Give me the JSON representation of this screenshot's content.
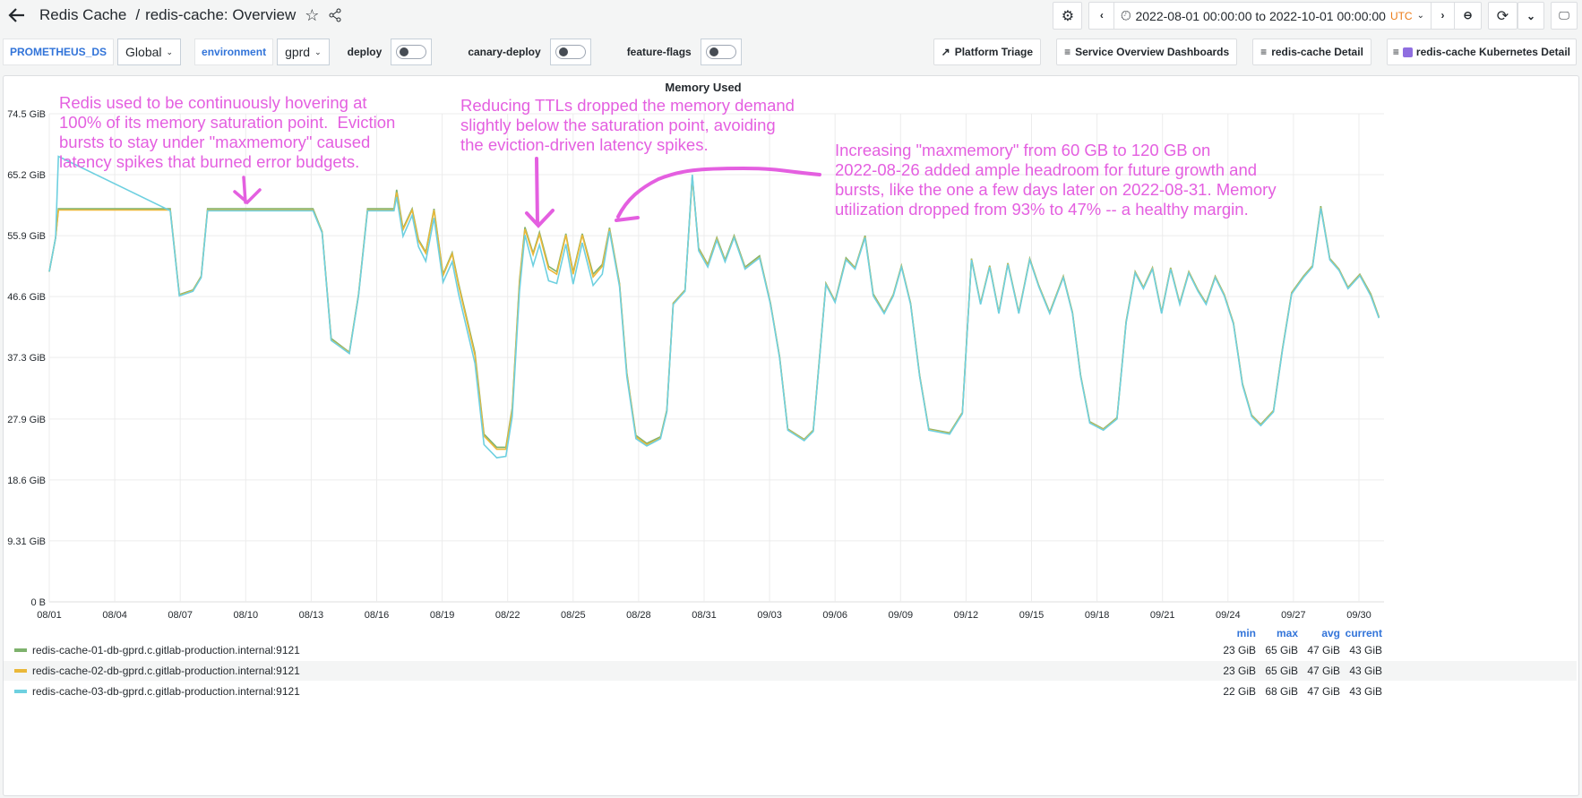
{
  "header": {
    "breadcrumb_folder": "Redis Cache",
    "breadcrumb_sep": "/",
    "title": "redis-cache: Overview",
    "time_range": "2022-08-01 00:00:00 to 2022-10-01 00:00:00",
    "timezone": "UTC"
  },
  "variables": [
    {
      "label": "PROMETHEUS_DS",
      "value": "Global"
    },
    {
      "label": "environment",
      "value": "gprd"
    },
    {
      "label": "deploy",
      "on": false
    },
    {
      "label": "canary-deploy",
      "on": false
    },
    {
      "label": "feature-flags",
      "on": false
    }
  ],
  "links": [
    "Platform Triage",
    "Service Overview Dashboards",
    "redis-cache Detail",
    "redis-cache Kubernetes Detail"
  ],
  "annotations": [
    "Redis used to be continuously hovering at\n100% of its memory saturation point.  Eviction\nbursts to stay under \"maxmemory\" caused\nlatency spikes that burned error budgets.",
    "Reducing TTLs dropped the memory demand\nslightly below the saturation point, avoiding\nthe eviction-driven latency spikes.",
    "Increasing \"maxmemory\" from 60 GB to 120 GB on\n2022-08-26 added ample headroom for future growth and\nbursts, like the one a few days later on 2022-08-31. Memory\nutilization dropped from 93% to 47% -- a healthy margin."
  ],
  "legend": {
    "columns": [
      "min",
      "max",
      "avg",
      "current"
    ],
    "rows": [
      {
        "name": "redis-cache-01-db-gprd.c.gitlab-production.internal:9121",
        "min": "23 GiB",
        "max": "65 GiB",
        "avg": "47 GiB",
        "current": "43 GiB"
      },
      {
        "name": "redis-cache-02-db-gprd.c.gitlab-production.internal:9121",
        "min": "23 GiB",
        "max": "65 GiB",
        "avg": "47 GiB",
        "current": "43 GiB"
      },
      {
        "name": "redis-cache-03-db-gprd.c.gitlab-production.internal:9121",
        "min": "22 GiB",
        "max": "68 GiB",
        "avg": "47 GiB",
        "current": "43 GiB"
      }
    ]
  },
  "chart_data": {
    "type": "line",
    "title": "Memory Used",
    "grid": true,
    "legend": "bottom",
    "ylim": [
      0,
      74.5
    ],
    "yticks": [
      "0 B",
      "9.31 GiB",
      "18.6 GiB",
      "27.9 GiB",
      "37.3 GiB",
      "46.6 GiB",
      "55.9 GiB",
      "65.2 GiB",
      "74.5 GiB"
    ],
    "ytick_values": [
      0,
      9.31,
      18.6,
      27.9,
      37.3,
      46.6,
      55.9,
      65.2,
      74.5
    ],
    "xlim": [
      "2022-08-01T00:00",
      "2022-10-01T00:00"
    ],
    "xticks": [
      "08/01",
      "08/04",
      "08/07",
      "08/10",
      "08/13",
      "08/16",
      "08/19",
      "08/22",
      "08/25",
      "08/28",
      "08/31",
      "09/03",
      "09/06",
      "09/09",
      "09/12",
      "09/15",
      "09/18",
      "09/21",
      "09/24",
      "09/27",
      "09/30"
    ],
    "xtick_dates": [
      "2022-08-01",
      "2022-08-04",
      "2022-08-07",
      "2022-08-10",
      "2022-08-13",
      "2022-08-16",
      "2022-08-19",
      "2022-08-22",
      "2022-08-25",
      "2022-08-28",
      "2022-08-31",
      "2022-09-03",
      "2022-09-06",
      "2022-09-09",
      "2022-09-12",
      "2022-09-15",
      "2022-09-18",
      "2022-09-21",
      "2022-09-24",
      "2022-09-27",
      "2022-09-30"
    ],
    "x": [
      "2022-08-01T00:00",
      "2022-08-01T07:00",
      "2022-08-01T10:00",
      "2022-08-06T13:00",
      "2022-08-06T23:00",
      "2022-08-07T14:00",
      "2022-08-07T23:00",
      "2022-08-08T06:00",
      "2022-08-13T02:00",
      "2022-08-13T12:00",
      "2022-08-13T22:00",
      "2022-08-14T18:00",
      "2022-08-15T04:00",
      "2022-08-15T14:00",
      "2022-08-16T19:00",
      "2022-08-16T22:00",
      "2022-08-17T05:00",
      "2022-08-17T15:00",
      "2022-08-17T22:00",
      "2022-08-18T06:00",
      "2022-08-18T15:00",
      "2022-08-19T01:00",
      "2022-08-19T11:00",
      "2022-08-19T18:00",
      "2022-08-20T12:00",
      "2022-08-20T22:00",
      "2022-08-21T12:00",
      "2022-08-21T22:00",
      "2022-08-22T05:00",
      "2022-08-22T13:00",
      "2022-08-22T19:00",
      "2022-08-23T04:00",
      "2022-08-23T11:00",
      "2022-08-23T21:00",
      "2022-08-24T06:00",
      "2022-08-24T16:00",
      "2022-08-25T00:00",
      "2022-08-25T10:00",
      "2022-08-25T22:00",
      "2022-08-26T08:00",
      "2022-08-26T16:00",
      "2022-08-27T03:00",
      "2022-08-27T11:00",
      "2022-08-27T21:00",
      "2022-08-28T09:00",
      "2022-08-29T00:00",
      "2022-08-29T07:00",
      "2022-08-29T14:00",
      "2022-08-30T03:00",
      "2022-08-30T11:00",
      "2022-08-30T18:00",
      "2022-08-31T04:00",
      "2022-08-31T14:00",
      "2022-08-31T23:00",
      "2022-09-01T09:00",
      "2022-09-01T21:00",
      "2022-09-02T13:00",
      "2022-09-03T01:00",
      "2022-09-03T11:00",
      "2022-09-03T20:00",
      "2022-09-04T14:00",
      "2022-09-05T00:00",
      "2022-09-05T07:00",
      "2022-09-05T14:00",
      "2022-09-06T00:00",
      "2022-09-06T12:00",
      "2022-09-06T22:00",
      "2022-09-07T09:00",
      "2022-09-07T18:00",
      "2022-09-08T06:00",
      "2022-09-08T16:00",
      "2022-09-09T01:00",
      "2022-09-09T11:00",
      "2022-09-09T21:00",
      "2022-09-10T07:00",
      "2022-09-11T06:00",
      "2022-09-11T20:00",
      "2022-09-12T06:00",
      "2022-09-12T16:00",
      "2022-09-13T02:00",
      "2022-09-13T12:00",
      "2022-09-13T22:00",
      "2022-09-14T10:00",
      "2022-09-14T22:00",
      "2022-09-15T08:00",
      "2022-09-15T20:00",
      "2022-09-16T11:00",
      "2022-09-16T21:00",
      "2022-09-17T06:00",
      "2022-09-17T16:00",
      "2022-09-18T07:00",
      "2022-09-18T22:00",
      "2022-09-19T08:00",
      "2022-09-19T18:00",
      "2022-09-20T03:00",
      "2022-09-20T13:00",
      "2022-09-20T23:00",
      "2022-09-21T09:00",
      "2022-09-21T19:00",
      "2022-09-22T05:00",
      "2022-09-22T15:00",
      "2022-09-23T00:00",
      "2022-09-23T10:00",
      "2022-09-23T20:00",
      "2022-09-24T06:00",
      "2022-09-24T16:00",
      "2022-09-25T02:00",
      "2022-09-25T12:00",
      "2022-09-26T02:00",
      "2022-09-26T12:00",
      "2022-09-26T22:00",
      "2022-09-27T11:00",
      "2022-09-27T21:00",
      "2022-09-28T06:00",
      "2022-09-28T16:00",
      "2022-09-29T02:00",
      "2022-09-29T12:00",
      "2022-09-30T01:00",
      "2022-09-30T13:00",
      "2022-09-30T22:00"
    ],
    "series": [
      {
        "name": "redis-cache-01-db-gprd.c.gitlab-production.internal:9121",
        "color": "#7eb26d",
        "values": [
          50.4,
          55.6,
          60.0,
          60.0,
          46.9,
          47.6,
          49.7,
          60.0,
          60.0,
          56.5,
          40.2,
          38.1,
          46.9,
          60.0,
          60.0,
          62.9,
          57.0,
          60.0,
          55.3,
          53.4,
          60.0,
          50.0,
          53.3,
          48.6,
          38.0,
          25.6,
          23.6,
          23.6,
          29.6,
          49.0,
          57.2,
          53.2,
          56.4,
          51.2,
          50.4,
          56.2,
          50.3,
          56.2,
          50.0,
          51.5,
          57.1,
          48.6,
          35.0,
          25.4,
          24.2,
          25.2,
          29.3,
          45.6,
          47.6,
          65.0,
          54.0,
          51.5,
          55.6,
          52.2,
          55.9,
          51.1,
          52.8,
          45.6,
          37.4,
          26.4,
          24.8,
          26.2,
          37.4,
          48.6,
          45.9,
          52.5,
          51.0,
          55.9,
          47.0,
          44.2,
          46.9,
          51.3,
          45.6,
          34.6,
          26.4,
          25.8,
          28.9,
          52.4,
          45.6,
          51.3,
          44.2,
          51.7,
          44.2,
          52.4,
          48.3,
          44.2,
          49.7,
          44.2,
          34.6,
          27.5,
          26.4,
          28.1,
          42.8,
          50.4,
          48.0,
          51.0,
          44.2,
          51.0,
          45.6,
          50.4,
          47.6,
          45.6,
          49.7,
          46.9,
          42.6,
          33.3,
          28.5,
          27.1,
          29.2,
          38.7,
          47.2,
          49.7,
          51.3,
          60.4,
          52.4,
          50.8,
          48.0,
          50.0,
          47.0,
          43.5
        ]
      },
      {
        "name": "redis-cache-02-db-gprd.c.gitlab-production.internal:9121",
        "color": "#eab839",
        "values": [
          50.4,
          55.6,
          59.8,
          59.8,
          46.8,
          47.5,
          49.6,
          59.8,
          59.8,
          56.4,
          40.0,
          38.0,
          46.8,
          59.8,
          59.8,
          62.5,
          56.8,
          59.8,
          55.1,
          53.2,
          59.8,
          49.8,
          53.1,
          48.3,
          37.6,
          25.3,
          23.3,
          23.3,
          29.3,
          48.6,
          56.9,
          53.0,
          56.1,
          50.8,
          50.0,
          56.0,
          50.0,
          56.0,
          49.6,
          51.2,
          56.9,
          48.4,
          34.8,
          25.2,
          24.0,
          25.0,
          29.1,
          45.5,
          47.5,
          64.8,
          53.8,
          51.3,
          55.4,
          52.0,
          55.7,
          50.9,
          52.6,
          45.5,
          37.3,
          26.3,
          24.7,
          26.1,
          37.3,
          48.5,
          45.8,
          52.3,
          50.9,
          55.7,
          46.8,
          44.1,
          46.8,
          51.2,
          45.5,
          34.5,
          26.3,
          25.7,
          28.8,
          52.3,
          45.5,
          51.2,
          44.1,
          51.6,
          44.1,
          52.3,
          48.2,
          44.1,
          49.6,
          44.1,
          34.5,
          27.4,
          26.3,
          28.0,
          42.7,
          50.3,
          47.9,
          50.9,
          44.1,
          50.9,
          45.5,
          50.3,
          47.5,
          45.5,
          49.6,
          46.8,
          42.5,
          33.2,
          28.4,
          27.0,
          29.1,
          38.6,
          47.1,
          49.6,
          51.2,
          60.2,
          52.3,
          50.7,
          47.9,
          49.9,
          46.8,
          43.4
        ]
      },
      {
        "name": "redis-cache-03-db-gprd.c.gitlab-production.internal:9121",
        "color": "#6ed0e0",
        "values": [
          50.4,
          55.6,
          68.0,
          59.7,
          46.7,
          47.4,
          49.5,
          59.7,
          59.7,
          56.3,
          39.9,
          37.9,
          46.7,
          59.7,
          59.7,
          61.8,
          55.8,
          59.0,
          54.2,
          52.0,
          58.6,
          48.8,
          51.9,
          47.0,
          36.4,
          24.0,
          22.0,
          22.2,
          28.3,
          47.4,
          56.0,
          51.3,
          54.5,
          49.0,
          48.6,
          54.6,
          48.5,
          54.8,
          48.3,
          50.0,
          56.6,
          48.1,
          34.4,
          24.9,
          23.8,
          24.9,
          29.0,
          45.4,
          47.4,
          65.2,
          53.6,
          51.1,
          55.2,
          51.9,
          55.6,
          50.8,
          52.5,
          45.4,
          37.2,
          26.2,
          24.6,
          26.0,
          37.2,
          48.4,
          45.7,
          52.2,
          50.8,
          55.6,
          46.7,
          44.0,
          46.7,
          51.1,
          45.4,
          34.4,
          26.2,
          25.6,
          28.7,
          52.2,
          45.4,
          51.1,
          44.0,
          51.5,
          44.0,
          52.2,
          48.1,
          44.0,
          49.5,
          44.0,
          34.4,
          27.3,
          26.2,
          27.9,
          42.6,
          50.2,
          47.8,
          50.8,
          44.0,
          50.8,
          45.4,
          50.2,
          47.4,
          45.4,
          49.5,
          46.7,
          42.4,
          33.1,
          28.3,
          26.9,
          29.0,
          38.5,
          47.0,
          49.5,
          51.1,
          60.1,
          52.2,
          50.6,
          47.8,
          49.8,
          46.7,
          43.3
        ]
      }
    ]
  }
}
